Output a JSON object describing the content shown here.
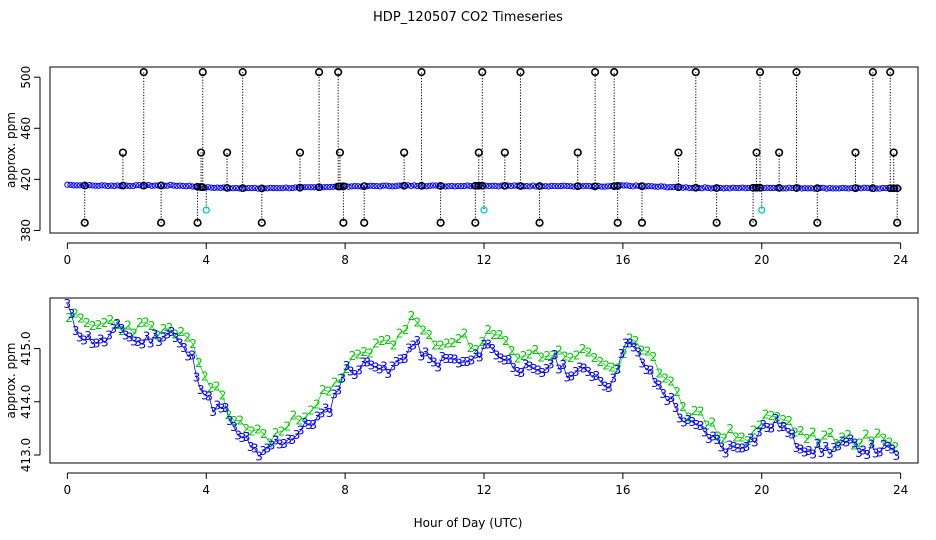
{
  "title": "HDP_120507  CO2 Timeseries",
  "xlabel": "Hour of Day (UTC)",
  "chart_data": [
    {
      "type": "scatter",
      "panel": "top",
      "ylabel": "approx. ppm",
      "xlim": [
        -0.5,
        24.5
      ],
      "ylim": [
        378,
        508
      ],
      "xticks": [
        0,
        4,
        8,
        12,
        16,
        20,
        24
      ],
      "yticks": [
        380,
        420,
        460,
        500
      ],
      "series": [
        {
          "color": "#0000ff",
          "baseline_points": [
            [
              0,
              415.8
            ],
            [
              0.5,
              415.2
            ],
            [
              1,
              415.1
            ],
            [
              2,
              415.1
            ],
            [
              3,
              415.3
            ],
            [
              3.5,
              414.8
            ],
            [
              4,
              413.6
            ],
            [
              5,
              413.2
            ],
            [
              5.5,
              412.9
            ],
            [
              6,
              413.2
            ],
            [
              7,
              413.6
            ],
            [
              8,
              414.6
            ],
            [
              9,
              414.8
            ],
            [
              10,
              415.1
            ],
            [
              11,
              414.8
            ],
            [
              12,
              415.1
            ],
            [
              13,
              414.8
            ],
            [
              14,
              414.8
            ],
            [
              15,
              414.6
            ],
            [
              15.5,
              414.3
            ],
            [
              16,
              415.1
            ],
            [
              17,
              414.3
            ],
            [
              18,
              413.5
            ],
            [
              19,
              413.1
            ],
            [
              20,
              413.5
            ],
            [
              21,
              413.2
            ],
            [
              22,
              413.1
            ],
            [
              23,
              413.1
            ],
            [
              24,
              413.0
            ]
          ]
        },
        {
          "color": "#000000",
          "spikes": [
            [
              0.5,
              386
            ],
            [
              1.6,
              441
            ],
            [
              2.2,
              504
            ],
            [
              2.7,
              386
            ],
            [
              3.75,
              386
            ],
            [
              3.85,
              441
            ],
            [
              3.9,
              504
            ],
            [
              4.6,
              441
            ],
            [
              5.05,
              504
            ],
            [
              5.6,
              386
            ],
            [
              6.7,
              441
            ],
            [
              7.25,
              504
            ],
            [
              7.8,
              504
            ],
            [
              7.85,
              441
            ],
            [
              7.95,
              386
            ],
            [
              8.55,
              386
            ],
            [
              9.7,
              441
            ],
            [
              10.2,
              504
            ],
            [
              10.75,
              386
            ],
            [
              11.75,
              386
            ],
            [
              11.85,
              441
            ],
            [
              11.95,
              504
            ],
            [
              12.6,
              441
            ],
            [
              13.05,
              504
            ],
            [
              13.6,
              386
            ],
            [
              14.7,
              441
            ],
            [
              15.2,
              504
            ],
            [
              15.75,
              504
            ],
            [
              15.85,
              386
            ],
            [
              16.55,
              386
            ],
            [
              17.6,
              441
            ],
            [
              18.1,
              504
            ],
            [
              18.7,
              386
            ],
            [
              19.75,
              386
            ],
            [
              19.85,
              441
            ],
            [
              19.95,
              504
            ],
            [
              20.5,
              441
            ],
            [
              21.0,
              504
            ],
            [
              21.6,
              386
            ],
            [
              22.7,
              441
            ],
            [
              23.2,
              504
            ],
            [
              23.7,
              504
            ],
            [
              23.8,
              441
            ],
            [
              23.9,
              386
            ]
          ]
        },
        {
          "color": "#00cccc",
          "outliers": [
            [
              4.0,
              396
            ],
            [
              12.0,
              396
            ],
            [
              20.0,
              396
            ]
          ]
        }
      ]
    },
    {
      "type": "scatter",
      "panel": "bottom",
      "ylabel": "approx. ppm",
      "xlim": [
        -0.5,
        24.5
      ],
      "ylim": [
        412.85,
        415.95
      ],
      "xticks": [
        0,
        4,
        8,
        12,
        16,
        20,
        24
      ],
      "yticks": [
        413.0,
        414.0,
        415.0
      ],
      "ytick_labels": [
        "413.0",
        "414.0",
        "415.0"
      ],
      "series": [
        {
          "color": "#0000ff",
          "marker": "3",
          "points": [
            [
              0,
              415.8
            ],
            [
              0.2,
              415.4
            ],
            [
              0.5,
              415.2
            ],
            [
              1,
              415.1
            ],
            [
              1.5,
              415.4
            ],
            [
              2,
              415.1
            ],
            [
              2.5,
              415.2
            ],
            [
              3,
              415.3
            ],
            [
              3.3,
              415.0
            ],
            [
              3.6,
              414.8
            ],
            [
              3.9,
              414.2
            ],
            [
              4.2,
              413.9
            ],
            [
              4.6,
              413.8
            ],
            [
              4.9,
              413.3
            ],
            [
              5.2,
              413.3
            ],
            [
              5.5,
              412.9
            ],
            [
              5.9,
              413.2
            ],
            [
              6.4,
              413.3
            ],
            [
              7,
              413.6
            ],
            [
              7.5,
              413.8
            ],
            [
              8,
              414.6
            ],
            [
              8.4,
              414.6
            ],
            [
              8.8,
              414.8
            ],
            [
              9.2,
              414.5
            ],
            [
              9.6,
              414.8
            ],
            [
              10,
              415.1
            ],
            [
              10.5,
              414.7
            ],
            [
              11,
              414.8
            ],
            [
              11.4,
              414.7
            ],
            [
              11.8,
              414.8
            ],
            [
              12,
              415.1
            ],
            [
              12.4,
              414.9
            ],
            [
              12.8,
              414.7
            ],
            [
              13.2,
              414.6
            ],
            [
              13.6,
              414.5
            ],
            [
              14,
              414.8
            ],
            [
              14.5,
              414.5
            ],
            [
              15,
              414.6
            ],
            [
              15.4,
              414.4
            ],
            [
              15.7,
              414.3
            ],
            [
              16,
              415.1
            ],
            [
              16.3,
              415.0
            ],
            [
              16.7,
              414.6
            ],
            [
              17,
              414.3
            ],
            [
              17.4,
              414.0
            ],
            [
              17.8,
              413.6
            ],
            [
              18.2,
              413.5
            ],
            [
              18.6,
              413.3
            ],
            [
              19,
              413.1
            ],
            [
              19.4,
              413.2
            ],
            [
              19.8,
              413.3
            ],
            [
              20,
              413.5
            ],
            [
              20.5,
              413.6
            ],
            [
              21,
              413.2
            ],
            [
              21.5,
              413.1
            ],
            [
              22,
              413.1
            ],
            [
              22.5,
              413.2
            ],
            [
              23,
              413.1
            ],
            [
              23.5,
              413.1
            ],
            [
              24,
              413.0
            ]
          ]
        },
        {
          "color": "#00cc00",
          "marker": "2",
          "points": [
            [
              0,
              415.7
            ],
            [
              0.3,
              415.5
            ],
            [
              0.7,
              415.4
            ],
            [
              1.2,
              415.5
            ],
            [
              1.7,
              415.4
            ],
            [
              2.3,
              415.4
            ],
            [
              2.8,
              415.3
            ],
            [
              3.2,
              415.3
            ],
            [
              3.7,
              414.9
            ],
            [
              4.1,
              414.3
            ],
            [
              4.5,
              414.1
            ],
            [
              4.8,
              413.6
            ],
            [
              5.3,
              413.5
            ],
            [
              5.8,
              413.3
            ],
            [
              6.3,
              413.5
            ],
            [
              6.8,
              413.8
            ],
            [
              7.3,
              414.1
            ],
            [
              7.8,
              414.3
            ],
            [
              8.2,
              414.8
            ],
            [
              8.6,
              414.9
            ],
            [
              9,
              415.2
            ],
            [
              9.5,
              415.1
            ],
            [
              9.9,
              415.6
            ],
            [
              10.3,
              415.2
            ],
            [
              10.8,
              415.0
            ],
            [
              11.3,
              415.3
            ],
            [
              11.7,
              414.9
            ],
            [
              12.2,
              415.3
            ],
            [
              12.6,
              415.1
            ],
            [
              13,
              414.9
            ],
            [
              13.5,
              414.9
            ],
            [
              14,
              414.9
            ],
            [
              14.4,
              414.9
            ],
            [
              14.9,
              414.9
            ],
            [
              15.3,
              414.8
            ],
            [
              15.8,
              414.6
            ],
            [
              16.2,
              415.1
            ],
            [
              16.6,
              414.9
            ],
            [
              17.1,
              414.6
            ],
            [
              17.5,
              414.3
            ],
            [
              17.9,
              413.8
            ],
            [
              18.3,
              413.7
            ],
            [
              18.8,
              413.4
            ],
            [
              19.2,
              413.4
            ],
            [
              19.6,
              413.3
            ],
            [
              20.1,
              413.7
            ],
            [
              20.6,
              413.7
            ],
            [
              21.1,
              413.4
            ],
            [
              21.6,
              413.3
            ],
            [
              22.1,
              413.3
            ],
            [
              22.6,
              413.3
            ],
            [
              23.1,
              413.3
            ],
            [
              23.6,
              413.3
            ],
            [
              23.9,
              413.2
            ]
          ]
        }
      ]
    }
  ]
}
